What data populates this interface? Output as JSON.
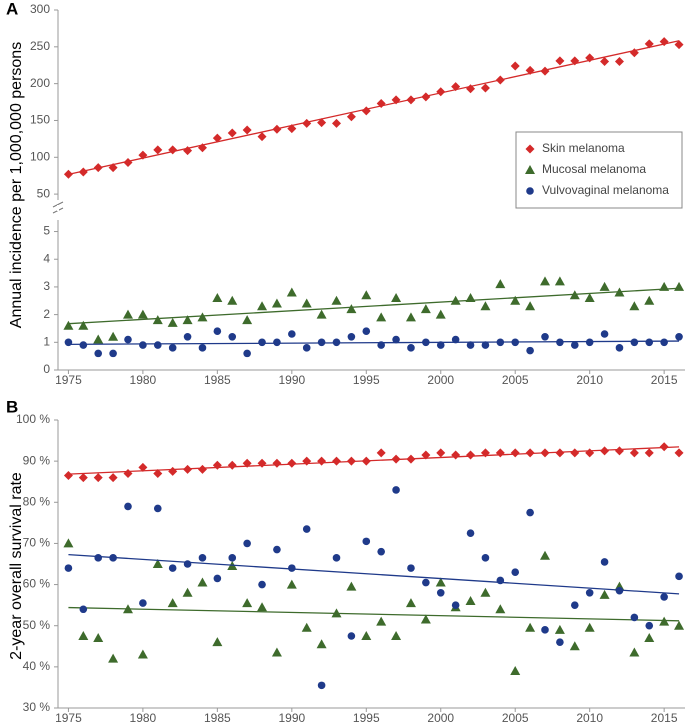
{
  "chart_data": [
    {
      "type": "scatter",
      "panel": "A",
      "y_label": "Annual incidence per 1,000,000 persons",
      "x": [
        1975,
        1976,
        1977,
        1978,
        1979,
        1980,
        1981,
        1982,
        1983,
        1984,
        1985,
        1986,
        1987,
        1988,
        1989,
        1990,
        1991,
        1992,
        1993,
        1994,
        1995,
        1996,
        1997,
        1998,
        1999,
        2000,
        2001,
        2002,
        2003,
        2004,
        2005,
        2006,
        2007,
        2008,
        2009,
        2010,
        2011,
        2012,
        2013,
        2014,
        2015,
        2016
      ],
      "xlim": [
        1974.3,
        2016.4
      ],
      "ylim": [
        42,
        300
      ],
      "yticks": [
        50,
        100,
        150,
        200,
        250,
        300
      ],
      "trendline": true,
      "legend": "upper right",
      "series": [
        {
          "name": "Skin melanoma",
          "color": "#d42a2a",
          "marker": "diamond",
          "values": [
            77,
            80,
            86,
            86,
            93,
            103,
            110,
            110,
            109,
            113,
            126,
            133,
            137,
            128,
            138,
            139,
            146,
            147,
            146,
            155,
            163,
            173,
            178,
            178,
            182,
            189,
            196,
            193,
            194,
            205,
            224,
            218,
            217,
            231,
            231,
            235,
            230,
            230,
            242,
            254,
            257,
            253
          ]
        }
      ]
    },
    {
      "type": "scatter",
      "x": [
        1975,
        1976,
        1977,
        1978,
        1979,
        1980,
        1981,
        1982,
        1983,
        1984,
        1985,
        1986,
        1987,
        1988,
        1989,
        1990,
        1991,
        1992,
        1993,
        1994,
        1995,
        1996,
        1997,
        1998,
        1999,
        2000,
        2001,
        2002,
        2003,
        2004,
        2005,
        2006,
        2007,
        2008,
        2009,
        2010,
        2011,
        2012,
        2013,
        2014,
        2015,
        2016
      ],
      "xlim": [
        1974.3,
        2016.4
      ],
      "xticks": [
        1975,
        1980,
        1985,
        1990,
        1995,
        2000,
        2005,
        2010,
        2015
      ],
      "ylim": [
        0,
        5.2
      ],
      "yticks": [
        0,
        1,
        2,
        3,
        4,
        5
      ],
      "trendline": true,
      "series": [
        {
          "name": "Mucosal melanoma",
          "color": "#3e6b2c",
          "marker": "triangle",
          "values": [
            1.6,
            1.6,
            1.1,
            1.2,
            2.0,
            2.0,
            1.8,
            1.7,
            1.8,
            1.9,
            2.6,
            2.5,
            1.8,
            2.3,
            2.4,
            2.8,
            2.4,
            2.0,
            2.5,
            2.2,
            2.7,
            1.9,
            2.6,
            1.9,
            2.2,
            2.0,
            2.5,
            2.6,
            2.3,
            3.1,
            2.5,
            2.3,
            3.2,
            3.2,
            2.7,
            2.6,
            3.0,
            2.8,
            2.3,
            2.5,
            3.0,
            3.0
          ]
        },
        {
          "name": "Vulvovaginal melanoma",
          "color": "#1f3a8a",
          "marker": "circle",
          "values": [
            1.0,
            0.9,
            0.6,
            0.6,
            1.1,
            0.9,
            0.9,
            0.8,
            1.2,
            0.8,
            1.4,
            1.2,
            0.6,
            1.0,
            1.0,
            1.3,
            0.8,
            1.0,
            1.0,
            1.2,
            1.4,
            0.9,
            1.1,
            0.8,
            1.0,
            0.9,
            1.1,
            0.9,
            0.9,
            1.0,
            1.0,
            0.7,
            1.2,
            1.0,
            0.9,
            1.0,
            1.3,
            0.8,
            1.0,
            1.0,
            1.0,
            1.2
          ]
        }
      ]
    },
    {
      "type": "scatter",
      "panel": "B",
      "y_label": "2-year overall survival rate",
      "x": [
        1975,
        1976,
        1977,
        1978,
        1979,
        1980,
        1981,
        1982,
        1983,
        1984,
        1985,
        1986,
        1987,
        1988,
        1989,
        1990,
        1991,
        1992,
        1993,
        1994,
        1995,
        1996,
        1997,
        1998,
        1999,
        2000,
        2001,
        2002,
        2003,
        2004,
        2005,
        2006,
        2007,
        2008,
        2009,
        2010,
        2011,
        2012,
        2013,
        2014,
        2015,
        2016
      ],
      "xlim": [
        1974.3,
        2016.4
      ],
      "xticks": [
        1975,
        1980,
        1985,
        1990,
        1995,
        2000,
        2005,
        2010,
        2015
      ],
      "ylim": [
        30,
        100
      ],
      "trendline": true,
      "yticks": [
        {
          "value": 30,
          "label": "30 %"
        },
        {
          "value": 40,
          "label": "40 %"
        },
        {
          "value": 50,
          "label": "50 %"
        },
        {
          "value": 60,
          "label": "60 %"
        },
        {
          "value": 70,
          "label": "70 %"
        },
        {
          "value": 80,
          "label": "80 %"
        },
        {
          "value": 90,
          "label": "90 %"
        },
        {
          "value": 100,
          "label": "100 %"
        }
      ],
      "series": [
        {
          "name": "Skin melanoma",
          "color": "#d42a2a",
          "marker": "diamond",
          "values": [
            86.5,
            86,
            86,
            86,
            87,
            88.5,
            87,
            87.5,
            88,
            88,
            89,
            89,
            89.5,
            89.5,
            89.5,
            89.5,
            90,
            90,
            90,
            90,
            90,
            92,
            90.5,
            90.5,
            91.5,
            92,
            91.5,
            91.5,
            92,
            92,
            92,
            92,
            92,
            92,
            92,
            92,
            92.5,
            92.5,
            92,
            92,
            93.5,
            92
          ]
        },
        {
          "name": "Mucosal melanoma",
          "color": "#3e6b2c",
          "marker": "triangle",
          "values": [
            70,
            47.5,
            47,
            42,
            54,
            43,
            65,
            55.5,
            58,
            60.5,
            46,
            64.5,
            55.5,
            54.5,
            43.5,
            60,
            49.5,
            45.5,
            53,
            59.5,
            47.5,
            51,
            47.5,
            55.5,
            51.5,
            60.5,
            54.5,
            56,
            58,
            54,
            39,
            49.5,
            67,
            49,
            45,
            49.5,
            57.5,
            59.5,
            43.5,
            47,
            51,
            50
          ]
        },
        {
          "name": "Vulvovaginal melanoma",
          "color": "#1f3a8a",
          "marker": "circle",
          "values": [
            64,
            54,
            66.5,
            66.5,
            79,
            55.5,
            78.5,
            64,
            65,
            66.5,
            61.5,
            66.5,
            70,
            60,
            68.5,
            64,
            73.5,
            35.5,
            66.5,
            47.5,
            70.5,
            68,
            83,
            64,
            60.5,
            58,
            55,
            72.5,
            66.5,
            61,
            63,
            77.5,
            49,
            46,
            55,
            58,
            65.5,
            58.5,
            52,
            50,
            57,
            62
          ]
        }
      ]
    }
  ]
}
